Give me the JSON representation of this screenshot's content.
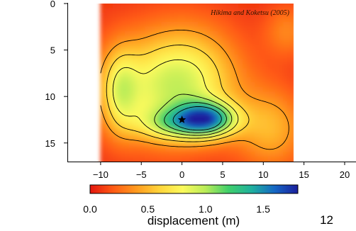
{
  "chart_data": {
    "type": "heatmap",
    "xlim": [
      -14,
      20
    ],
    "ylim": [
      0,
      17
    ],
    "y_inverted": true,
    "x_ticks": [
      -10,
      -5,
      0,
      5,
      10,
      15,
      20
    ],
    "y_ticks": [
      0,
      5,
      10,
      15
    ],
    "x_tick_labels": [
      "−10",
      "−5",
      "0",
      "5",
      "10",
      "15",
      "20"
    ],
    "y_tick_labels": [
      "0",
      "5",
      "10",
      "15"
    ],
    "fault_extent_x": [
      -10,
      14
    ],
    "epicenter": {
      "x": 0,
      "y": 12.5,
      "symbol": "star"
    },
    "peak_displacement": {
      "x": 3,
      "y": 12.5,
      "value": 1.8
    },
    "contour_levels": [
      0.4,
      0.6,
      0.8,
      1.0,
      1.2,
      1.4
    ],
    "colorbar": {
      "label": "displacement (m)",
      "range": [
        0,
        1.8
      ],
      "ticks": [
        0.0,
        0.5,
        1.0,
        1.5
      ],
      "tick_labels": [
        "0.0",
        "0.5",
        "1.0",
        "1.5"
      ],
      "colors": [
        "#e3160e",
        "#ff5a14",
        "#ff9a1e",
        "#ffd43a",
        "#fcfa5c",
        "#b9ec58",
        "#3fcf6b",
        "#1fb09e",
        "#1566c4",
        "#1b1e9c"
      ]
    },
    "source": "Hikima and Koketsu (2005)"
  },
  "page_number": "12"
}
